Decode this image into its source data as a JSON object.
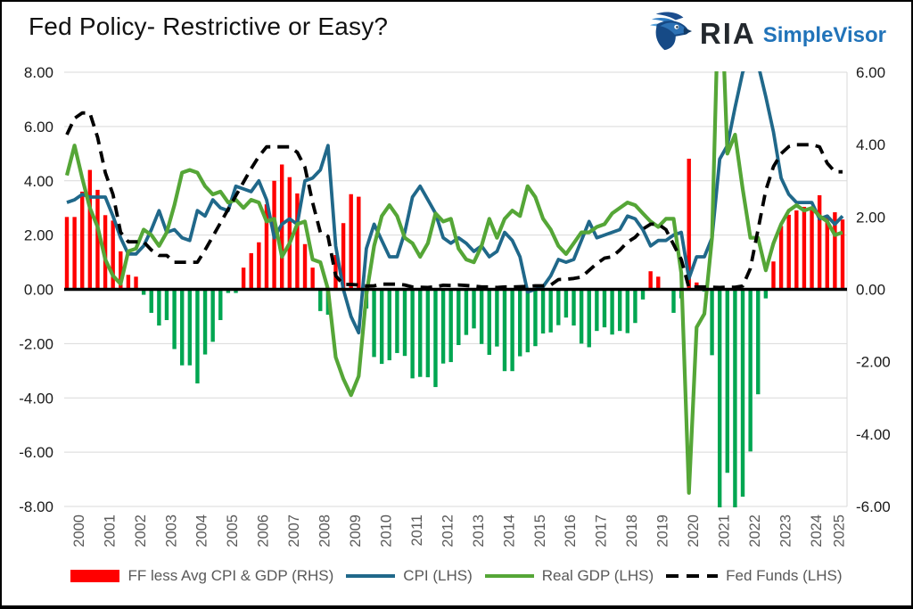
{
  "header": {
    "title": "Fed Policy- Restrictive or Easy?",
    "brand": {
      "name": "RIA",
      "product": "SimpleVisor",
      "product_color": "#2173b9",
      "name_color": "#23282d"
    }
  },
  "chart_data": {
    "type": "bar+line combo, quarterly 2000Q1-2025Q2",
    "title": "Fed Policy- Restrictive or Easy?",
    "x_labels": [
      "2000",
      "2001",
      "2002",
      "2003",
      "2004",
      "2005",
      "2006",
      "2007",
      "2008",
      "2009",
      "2010",
      "2011",
      "2012",
      "2013",
      "2014",
      "2015",
      "2016",
      "2017",
      "2018",
      "2019",
      "2020",
      "2021",
      "2022",
      "2023",
      "2024",
      "2025"
    ],
    "lhs_axis": {
      "min": -8,
      "max": 8,
      "step": 2,
      "ticks": [
        "8.00",
        "6.00",
        "4.00",
        "2.00",
        "0.00",
        "-2.00",
        "-4.00",
        "-6.00",
        "-8.00"
      ]
    },
    "rhs_axis": {
      "min": -6,
      "max": 6,
      "step": 2,
      "ticks": [
        "6.00",
        "4.00",
        "2.00",
        "0.00",
        "-2.00",
        "-4.00",
        "-6.00"
      ]
    },
    "grid": {
      "show_horizontal": true,
      "color": "#d9d9d9",
      "zero_line_color": "#000000"
    },
    "legend_position": "bottom-center",
    "series": [
      {
        "name": "FF less Avg CPI & GDP (RHS)",
        "type": "bar",
        "axis": "RHS",
        "color_positive": "#ff0000",
        "color_negative": "#00a651",
        "values": [
          2.0,
          2.0,
          2.7,
          3.3,
          2.75,
          2.05,
          1.9,
          1.05,
          0.4,
          0.35,
          -0.15,
          -0.65,
          -1.0,
          -0.85,
          -1.65,
          -2.1,
          -2.1,
          -2.6,
          -1.8,
          -1.45,
          -0.85,
          -0.1,
          -0.1,
          0.6,
          1.0,
          1.3,
          2.35,
          3.0,
          3.45,
          3.1,
          2.65,
          1.25,
          0.6,
          -0.6,
          -0.7,
          0.95,
          1.83,
          2.63,
          2.56,
          -0.53,
          -1.87,
          -2.06,
          -1.96,
          -1.76,
          -1.84,
          -2.46,
          -2.42,
          -2.43,
          -2.7,
          -2.05,
          -2.01,
          -1.54,
          -1.26,
          -1.08,
          -1.51,
          -1.81,
          -1.58,
          -2.26,
          -2.26,
          -1.85,
          -1.74,
          -1.57,
          -1.22,
          -1.19,
          -0.99,
          -0.78,
          -1.0,
          -1.5,
          -1.6,
          -1.15,
          -1.05,
          -1.25,
          -1.15,
          -1.21,
          -0.93,
          -0.28,
          0.5,
          0.35,
          0.0,
          -0.65,
          -0.25,
          3.61,
          0.19,
          -0.06,
          -1.82,
          -8.58,
          -5.07,
          -6.12,
          -5.73,
          -4.48,
          -2.9,
          -0.25,
          0.77,
          1.75,
          2.06,
          2.18,
          2.28,
          2.23,
          2.6,
          2.05,
          2.13,
          1.93
        ]
      },
      {
        "name": "CPI (LHS)",
        "type": "line",
        "axis": "LHS",
        "color": "#20688a",
        "values": [
          3.2,
          3.3,
          3.5,
          3.4,
          3.4,
          3.4,
          2.7,
          1.9,
          1.3,
          1.3,
          1.6,
          2.2,
          2.9,
          2.1,
          2.2,
          1.9,
          1.8,
          2.9,
          2.7,
          3.3,
          3.0,
          2.9,
          3.8,
          3.7,
          3.6,
          4.0,
          3.3,
          1.9,
          2.4,
          2.6,
          2.4,
          4.0,
          4.1,
          4.4,
          5.3,
          1.6,
          0.0,
          -1.0,
          -1.6,
          1.5,
          2.4,
          1.8,
          1.2,
          1.2,
          2.1,
          3.4,
          3.8,
          3.3,
          2.8,
          1.9,
          1.7,
          1.9,
          1.7,
          1.4,
          1.6,
          1.2,
          1.4,
          2.1,
          1.8,
          1.2,
          -0.1,
          0.0,
          0.1,
          0.5,
          1.1,
          1.0,
          1.1,
          1.8,
          2.5,
          1.9,
          2.0,
          2.1,
          2.2,
          2.7,
          2.6,
          2.2,
          1.6,
          1.8,
          1.8,
          2.0,
          2.1,
          0.4,
          1.2,
          1.2,
          1.9,
          4.8,
          5.3,
          6.7,
          8.0,
          8.6,
          8.3,
          7.1,
          5.8,
          4.1,
          3.5,
          3.2,
          3.2,
          3.2,
          2.6,
          2.7,
          2.4,
          2.7
        ]
      },
      {
        "name": "Real GDP (LHS)",
        "type": "line",
        "axis": "LHS",
        "color": "#55a637",
        "values": [
          4.2,
          5.3,
          4.1,
          3.0,
          2.3,
          1.1,
          0.5,
          0.2,
          1.4,
          1.5,
          2.2,
          2.0,
          1.6,
          2.1,
          3.1,
          4.3,
          4.4,
          4.3,
          3.8,
          3.5,
          3.6,
          3.2,
          3.3,
          3.0,
          3.3,
          3.2,
          2.5,
          2.6,
          1.2,
          1.7,
          2.4,
          2.5,
          1.1,
          1.0,
          0.0,
          -2.5,
          -3.3,
          -3.9,
          -3.2,
          -0.2,
          1.6,
          2.7,
          3.1,
          2.7,
          1.9,
          1.7,
          1.2,
          1.7,
          2.8,
          2.5,
          2.6,
          1.5,
          1.1,
          1.0,
          1.6,
          2.6,
          1.9,
          2.6,
          2.9,
          2.7,
          3.8,
          3.4,
          2.6,
          2.2,
          1.6,
          1.3,
          1.7,
          2.1,
          2.1,
          2.3,
          2.4,
          2.8,
          3.0,
          3.2,
          3.1,
          2.8,
          2.5,
          2.3,
          2.6,
          2.6,
          0.6,
          -7.5,
          -1.4,
          -0.9,
          1.9,
          12.5,
          5.0,
          5.7,
          3.7,
          1.9,
          1.9,
          0.7,
          1.7,
          2.4,
          2.9,
          3.1,
          2.9,
          3.0,
          2.7,
          2.5,
          2.0,
          2.1
        ]
      },
      {
        "name": "Fed Funds (LHS)",
        "type": "dashed-line",
        "axis": "LHS",
        "color": "#000000",
        "values": [
          5.7,
          6.3,
          6.5,
          6.5,
          5.6,
          4.3,
          3.5,
          2.1,
          1.75,
          1.75,
          1.75,
          1.45,
          1.25,
          1.25,
          1.0,
          1.0,
          1.0,
          1.0,
          1.45,
          1.95,
          2.45,
          2.95,
          3.45,
          3.95,
          4.45,
          4.9,
          5.25,
          5.25,
          5.25,
          5.25,
          5.05,
          4.5,
          3.2,
          2.1,
          1.95,
          0.5,
          0.18,
          0.18,
          0.16,
          0.12,
          0.13,
          0.19,
          0.19,
          0.19,
          0.16,
          0.09,
          0.08,
          0.07,
          0.1,
          0.15,
          0.14,
          0.16,
          0.14,
          0.12,
          0.09,
          0.09,
          0.07,
          0.09,
          0.09,
          0.1,
          0.11,
          0.13,
          0.13,
          0.16,
          0.36,
          0.37,
          0.4,
          0.45,
          0.7,
          0.95,
          1.15,
          1.2,
          1.45,
          1.74,
          1.92,
          2.22,
          2.4,
          2.4,
          2.2,
          1.65,
          1.1,
          0.06,
          0.09,
          0.09,
          0.08,
          0.07,
          0.08,
          0.08,
          0.12,
          0.77,
          2.2,
          3.65,
          4.52,
          5.0,
          5.26,
          5.33,
          5.33,
          5.33,
          5.25,
          4.65,
          4.33,
          4.33
        ]
      }
    ]
  }
}
